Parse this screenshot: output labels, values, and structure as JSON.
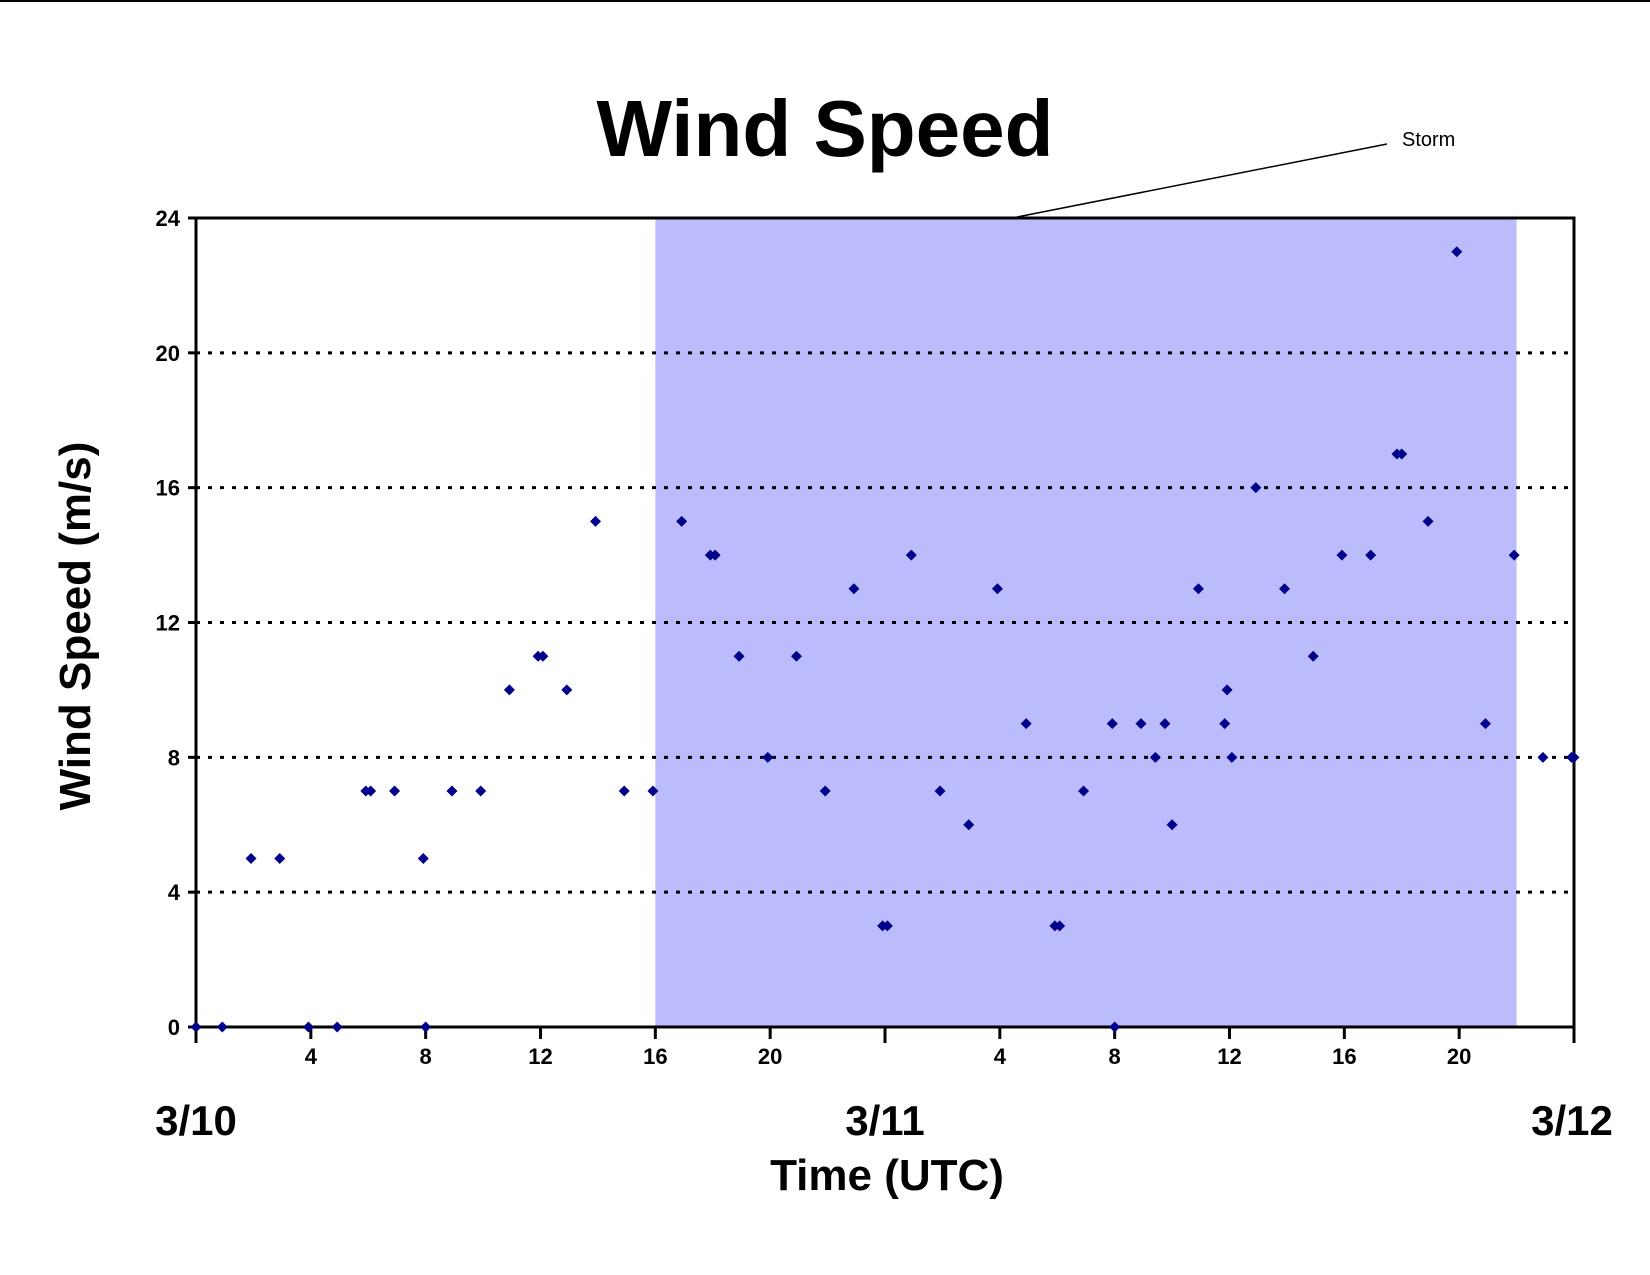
{
  "chart_data": {
    "type": "scatter",
    "title": "Wind Speed",
    "xlabel": "Time (UTC)",
    "ylabel": "Wind Speed (m/s)",
    "x_unit": "UTC",
    "x_range": [
      "3/10 00:00",
      "3/12 00:00"
    ],
    "ylim": [
      0,
      24
    ],
    "y_ticks": [
      "0",
      "4",
      "8",
      "12",
      "16",
      "20",
      "24"
    ],
    "x_hour_ticks": [
      {
        "at": "3/10 04:00",
        "label": "4"
      },
      {
        "at": "3/10 08:00",
        "label": "8"
      },
      {
        "at": "3/10 12:00",
        "label": "12"
      },
      {
        "at": "3/10 16:00",
        "label": "16"
      },
      {
        "at": "3/10 20:00",
        "label": "20"
      },
      {
        "at": "3/11 04:00",
        "label": "4"
      },
      {
        "at": "3/11 08:00",
        "label": "8"
      },
      {
        "at": "3/11 12:00",
        "label": "12"
      },
      {
        "at": "3/11 16:00",
        "label": "16"
      },
      {
        "at": "3/11 20:00",
        "label": "20"
      }
    ],
    "x_day_labels": [
      {
        "at": "3/10 00:00",
        "label": "3/10"
      },
      {
        "at": "3/11 00:00",
        "label": "3/11"
      },
      {
        "at": "3/12 00:00",
        "label": "3/12"
      }
    ],
    "grid": "horizontal dotted",
    "shaded_region": {
      "label": "Storm",
      "start": "3/10 16:00",
      "end": "3/11 22:00",
      "color": "#bcbcfc"
    },
    "marker_color": "#00008b",
    "points": [
      {
        "t": "3/10 00:00",
        "y": 0
      },
      {
        "t": "3/10 00:55",
        "y": 0
      },
      {
        "t": "3/10 01:55",
        "y": 5
      },
      {
        "t": "3/10 02:55",
        "y": 5
      },
      {
        "t": "3/10 03:55",
        "y": 0
      },
      {
        "t": "3/10 04:55",
        "y": 0
      },
      {
        "t": "3/10 05:55",
        "y": 7
      },
      {
        "t": "3/10 06:05",
        "y": 7
      },
      {
        "t": "3/10 06:55",
        "y": 7
      },
      {
        "t": "3/10 07:55",
        "y": 5
      },
      {
        "t": "3/10 08:00",
        "y": 0
      },
      {
        "t": "3/10 08:55",
        "y": 7
      },
      {
        "t": "3/10 09:55",
        "y": 7
      },
      {
        "t": "3/10 10:55",
        "y": 10
      },
      {
        "t": "3/10 11:55",
        "y": 11
      },
      {
        "t": "3/10 12:05",
        "y": 11
      },
      {
        "t": "3/10 12:55",
        "y": 10
      },
      {
        "t": "3/10 13:55",
        "y": 15
      },
      {
        "t": "3/10 14:55",
        "y": 7
      },
      {
        "t": "3/10 15:55",
        "y": 7
      },
      {
        "t": "3/10 16:55",
        "y": 15
      },
      {
        "t": "3/10 17:55",
        "y": 14
      },
      {
        "t": "3/10 18:05",
        "y": 14
      },
      {
        "t": "3/10 18:55",
        "y": 11
      },
      {
        "t": "3/10 19:55",
        "y": 8
      },
      {
        "t": "3/10 20:55",
        "y": 11
      },
      {
        "t": "3/10 21:55",
        "y": 7
      },
      {
        "t": "3/10 22:55",
        "y": 13
      },
      {
        "t": "3/10 23:55",
        "y": 3
      },
      {
        "t": "3/11 00:05",
        "y": 3
      },
      {
        "t": "3/11 00:55",
        "y": 14
      },
      {
        "t": "3/11 01:55",
        "y": 7
      },
      {
        "t": "3/11 02:55",
        "y": 6
      },
      {
        "t": "3/11 03:55",
        "y": 13
      },
      {
        "t": "3/11 04:55",
        "y": 9
      },
      {
        "t": "3/11 05:55",
        "y": 3
      },
      {
        "t": "3/11 06:05",
        "y": 3
      },
      {
        "t": "3/11 06:55",
        "y": 7
      },
      {
        "t": "3/11 07:55",
        "y": 9
      },
      {
        "t": "3/11 08:00",
        "y": 0
      },
      {
        "t": "3/11 08:55",
        "y": 9
      },
      {
        "t": "3/11 09:25",
        "y": 8
      },
      {
        "t": "3/11 09:45",
        "y": 9
      },
      {
        "t": "3/11 10:00",
        "y": 6
      },
      {
        "t": "3/11 10:55",
        "y": 13
      },
      {
        "t": "3/11 11:50",
        "y": 9
      },
      {
        "t": "3/11 11:55",
        "y": 10
      },
      {
        "t": "3/11 12:05",
        "y": 8
      },
      {
        "t": "3/11 12:55",
        "y": 16
      },
      {
        "t": "3/11 13:55",
        "y": 13
      },
      {
        "t": "3/11 14:55",
        "y": 11
      },
      {
        "t": "3/11 15:55",
        "y": 14
      },
      {
        "t": "3/11 16:55",
        "y": 14
      },
      {
        "t": "3/11 17:50",
        "y": 17
      },
      {
        "t": "3/11 18:00",
        "y": 17
      },
      {
        "t": "3/11 18:55",
        "y": 15
      },
      {
        "t": "3/11 19:55",
        "y": 23
      },
      {
        "t": "3/11 20:55",
        "y": 9
      },
      {
        "t": "3/11 21:55",
        "y": 14
      },
      {
        "t": "3/11 22:55",
        "y": 8
      },
      {
        "t": "3/11 23:55",
        "y": 8
      },
      {
        "t": "3/12 00:00",
        "y": 8
      }
    ]
  }
}
